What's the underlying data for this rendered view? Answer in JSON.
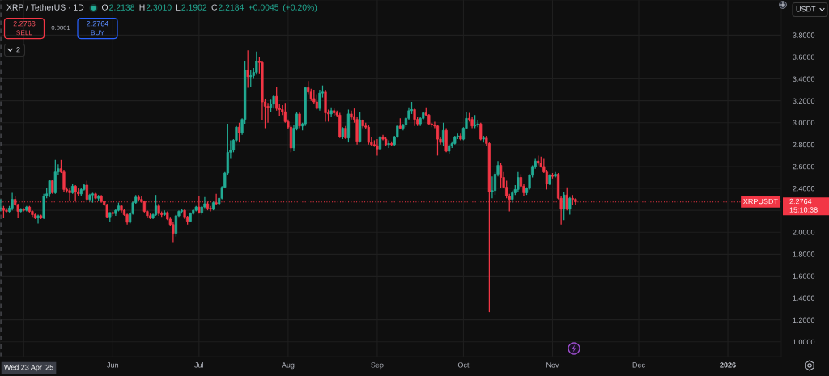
{
  "chart_data": {
    "type": "candlestick",
    "title": "XRP / TetherUS · 1D",
    "subtitle": "O2.2138 H2.3010 L2.1902 C2.2184 +0.0045 (+0.20%)",
    "x": [
      "2025-04-23",
      "2025-04-24",
      "2025-04-25",
      "2025-04-26",
      "2025-04-27",
      "2025-04-28",
      "2025-04-29",
      "2025-04-30",
      "2025-05-01",
      "2025-05-02",
      "2025-05-03",
      "2025-05-04",
      "2025-05-05",
      "2025-05-06",
      "2025-05-07",
      "2025-05-08",
      "2025-05-09",
      "2025-05-10",
      "2025-05-11",
      "2025-05-12",
      "2025-05-13",
      "2025-05-14",
      "2025-05-15",
      "2025-05-16",
      "2025-05-17",
      "2025-05-18",
      "2025-05-19",
      "2025-05-20",
      "2025-05-21",
      "2025-05-22",
      "2025-05-23",
      "2025-05-24",
      "2025-05-25",
      "2025-05-26",
      "2025-05-27",
      "2025-05-28",
      "2025-05-29",
      "2025-05-30",
      "2025-05-31",
      "2025-06-01",
      "2025-06-02",
      "2025-06-03",
      "2025-06-04",
      "2025-06-05",
      "2025-06-06",
      "2025-06-07",
      "2025-06-08",
      "2025-06-09",
      "2025-06-10",
      "2025-06-11",
      "2025-06-12",
      "2025-06-13",
      "2025-06-14",
      "2025-06-15",
      "2025-06-16",
      "2025-06-17",
      "2025-06-18",
      "2025-06-19",
      "2025-06-20",
      "2025-06-21",
      "2025-06-22",
      "2025-06-23",
      "2025-06-24",
      "2025-06-25",
      "2025-06-26",
      "2025-06-27",
      "2025-06-28",
      "2025-06-29",
      "2025-06-30",
      "2025-07-01",
      "2025-07-02",
      "2025-07-03",
      "2025-07-04",
      "2025-07-05",
      "2025-07-06",
      "2025-07-07",
      "2025-07-08",
      "2025-07-09",
      "2025-07-10",
      "2025-07-11",
      "2025-07-12",
      "2025-07-13",
      "2025-07-14",
      "2025-07-15",
      "2025-07-16",
      "2025-07-17",
      "2025-07-18",
      "2025-07-19",
      "2025-07-20",
      "2025-07-21",
      "2025-07-22",
      "2025-07-23",
      "2025-07-24",
      "2025-07-25",
      "2025-07-26",
      "2025-07-27",
      "2025-07-28",
      "2025-07-29",
      "2025-07-30",
      "2025-07-31",
      "2025-08-01",
      "2025-08-02",
      "2025-08-03",
      "2025-08-04",
      "2025-08-05",
      "2025-08-06",
      "2025-08-07",
      "2025-08-08",
      "2025-08-09",
      "2025-08-10",
      "2025-08-11",
      "2025-08-12",
      "2025-08-13",
      "2025-08-14",
      "2025-08-15",
      "2025-08-16",
      "2025-08-17",
      "2025-08-18",
      "2025-08-19",
      "2025-08-20",
      "2025-08-21",
      "2025-08-22",
      "2025-08-23",
      "2025-08-24",
      "2025-08-25",
      "2025-08-26",
      "2025-08-27",
      "2025-08-28",
      "2025-08-29",
      "2025-08-30",
      "2025-08-31",
      "2025-09-01",
      "2025-09-02",
      "2025-09-03",
      "2025-09-04",
      "2025-09-05",
      "2025-09-06",
      "2025-09-07",
      "2025-09-08",
      "2025-09-09",
      "2025-09-10",
      "2025-09-11",
      "2025-09-12",
      "2025-09-13",
      "2025-09-14",
      "2025-09-15",
      "2025-09-16",
      "2025-09-17",
      "2025-09-18",
      "2025-09-19",
      "2025-09-20",
      "2025-09-21",
      "2025-09-22",
      "2025-09-23",
      "2025-09-24",
      "2025-09-25",
      "2025-09-26",
      "2025-09-27",
      "2025-09-28",
      "2025-09-29",
      "2025-09-30",
      "2025-10-01",
      "2025-10-02",
      "2025-10-03",
      "2025-10-04",
      "2025-10-05",
      "2025-10-06",
      "2025-10-07",
      "2025-10-08",
      "2025-10-09",
      "2025-10-10",
      "2025-10-11",
      "2025-10-12",
      "2025-10-13",
      "2025-10-14",
      "2025-10-15",
      "2025-10-16",
      "2025-10-17",
      "2025-10-18",
      "2025-10-19",
      "2025-10-20",
      "2025-10-21",
      "2025-10-22",
      "2025-10-23",
      "2025-10-24",
      "2025-10-25",
      "2025-10-26",
      "2025-10-27",
      "2025-10-28",
      "2025-10-29",
      "2025-10-30",
      "2025-10-31",
      "2025-11-01",
      "2025-11-02",
      "2025-11-03",
      "2025-11-04",
      "2025-11-05",
      "2025-11-06",
      "2025-11-07",
      "2025-11-08",
      "2025-11-09"
    ],
    "ohlc": [
      [
        2.2138,
        2.301,
        2.1902,
        2.2184
      ],
      [
        2.22,
        2.24,
        2.13,
        2.2
      ],
      [
        2.2,
        2.22,
        2.18,
        2.19
      ],
      [
        2.19,
        2.24,
        2.18,
        2.22
      ],
      [
        2.22,
        2.36,
        2.2,
        2.3
      ],
      [
        2.3,
        2.33,
        2.24,
        2.25
      ],
      [
        2.25,
        2.26,
        2.13,
        2.19
      ],
      [
        2.19,
        2.22,
        2.18,
        2.21
      ],
      [
        2.21,
        2.22,
        2.19,
        2.2
      ],
      [
        2.2,
        2.24,
        2.19,
        2.23
      ],
      [
        2.23,
        2.24,
        2.18,
        2.19
      ],
      [
        2.19,
        2.2,
        2.14,
        2.16
      ],
      [
        2.16,
        2.17,
        2.12,
        2.13
      ],
      [
        2.13,
        2.16,
        2.08,
        2.15
      ],
      [
        2.15,
        2.16,
        2.12,
        2.13
      ],
      [
        2.13,
        2.35,
        2.12,
        2.33
      ],
      [
        2.33,
        2.4,
        2.31,
        2.35
      ],
      [
        2.35,
        2.48,
        2.32,
        2.47
      ],
      [
        2.47,
        2.48,
        2.35,
        2.36
      ],
      [
        2.36,
        2.66,
        2.35,
        2.55
      ],
      [
        2.55,
        2.62,
        2.52,
        2.58
      ],
      [
        2.58,
        2.66,
        2.54,
        2.55
      ],
      [
        2.55,
        2.57,
        2.37,
        2.39
      ],
      [
        2.39,
        2.41,
        2.36,
        2.38
      ],
      [
        2.38,
        2.4,
        2.29,
        2.36
      ],
      [
        2.36,
        2.44,
        2.35,
        2.42
      ],
      [
        2.42,
        2.43,
        2.29,
        2.37
      ],
      [
        2.37,
        2.4,
        2.33,
        2.35
      ],
      [
        2.35,
        2.4,
        2.33,
        2.39
      ],
      [
        2.39,
        2.44,
        2.38,
        2.43
      ],
      [
        2.43,
        2.47,
        2.29,
        2.3
      ],
      [
        2.3,
        2.35,
        2.28,
        2.34
      ],
      [
        2.34,
        2.36,
        2.27,
        2.35
      ],
      [
        2.35,
        2.36,
        2.3,
        2.31
      ],
      [
        2.31,
        2.34,
        2.29,
        2.33
      ],
      [
        2.33,
        2.34,
        2.27,
        2.28
      ],
      [
        2.28,
        2.29,
        2.24,
        2.25
      ],
      [
        2.25,
        2.26,
        2.13,
        2.14
      ],
      [
        2.14,
        2.18,
        2.09,
        2.18
      ],
      [
        2.18,
        2.19,
        2.15,
        2.17
      ],
      [
        2.17,
        2.21,
        2.15,
        2.2
      ],
      [
        2.2,
        2.27,
        2.19,
        2.24
      ],
      [
        2.24,
        2.25,
        2.18,
        2.2
      ],
      [
        2.2,
        2.21,
        2.15,
        2.16
      ],
      [
        2.16,
        2.17,
        2.07,
        2.09
      ],
      [
        2.09,
        2.19,
        2.08,
        2.17
      ],
      [
        2.17,
        2.28,
        2.16,
        2.27
      ],
      [
        2.27,
        2.34,
        2.26,
        2.32
      ],
      [
        2.32,
        2.34,
        2.28,
        2.3
      ],
      [
        2.3,
        2.33,
        2.27,
        2.28
      ],
      [
        2.28,
        2.29,
        2.18,
        2.19
      ],
      [
        2.19,
        2.2,
        2.13,
        2.15
      ],
      [
        2.15,
        2.17,
        2.12,
        2.13
      ],
      [
        2.13,
        2.17,
        2.12,
        2.16
      ],
      [
        2.16,
        2.34,
        2.15,
        2.24
      ],
      [
        2.24,
        2.26,
        2.15,
        2.17
      ],
      [
        2.17,
        2.19,
        2.14,
        2.16
      ],
      [
        2.16,
        2.2,
        2.15,
        2.18
      ],
      [
        2.18,
        2.19,
        2.11,
        2.12
      ],
      [
        2.12,
        2.14,
        2.06,
        2.07
      ],
      [
        2.07,
        2.09,
        1.91,
        1.99
      ],
      [
        1.99,
        2.16,
        1.96,
        2.15
      ],
      [
        2.15,
        2.2,
        2.14,
        2.19
      ],
      [
        2.19,
        2.21,
        2.17,
        2.2
      ],
      [
        2.2,
        2.21,
        2.12,
        2.14
      ],
      [
        2.14,
        2.15,
        2.07,
        2.1
      ],
      [
        2.1,
        2.18,
        2.09,
        2.17
      ],
      [
        2.17,
        2.21,
        2.16,
        2.2
      ],
      [
        2.2,
        2.24,
        2.19,
        2.23
      ],
      [
        2.23,
        2.33,
        2.17,
        2.18
      ],
      [
        2.18,
        2.24,
        2.16,
        2.23
      ],
      [
        2.23,
        2.32,
        2.22,
        2.26
      ],
      [
        2.26,
        2.28,
        2.2,
        2.22
      ],
      [
        2.22,
        2.24,
        2.19,
        2.21
      ],
      [
        2.21,
        2.28,
        2.2,
        2.27
      ],
      [
        2.27,
        2.35,
        2.25,
        2.26
      ],
      [
        2.26,
        2.31,
        2.25,
        2.31
      ],
      [
        2.31,
        2.42,
        2.3,
        2.41
      ],
      [
        2.41,
        2.55,
        2.4,
        2.54
      ],
      [
        2.54,
        2.99,
        2.52,
        2.73
      ],
      [
        2.73,
        2.84,
        2.67,
        2.75
      ],
      [
        2.75,
        2.85,
        2.73,
        2.84
      ],
      [
        2.84,
        2.97,
        2.82,
        2.96
      ],
      [
        2.96,
        3.0,
        2.82,
        2.91
      ],
      [
        2.91,
        3.04,
        2.89,
        3.03
      ],
      [
        3.03,
        3.56,
        2.99,
        3.48
      ],
      [
        3.48,
        3.66,
        3.32,
        3.42
      ],
      [
        3.42,
        3.48,
        3.33,
        3.43
      ],
      [
        3.43,
        3.5,
        3.4,
        3.46
      ],
      [
        3.46,
        3.65,
        3.44,
        3.56
      ],
      [
        3.56,
        3.6,
        3.45,
        3.55
      ],
      [
        3.55,
        3.56,
        3.02,
        3.19
      ],
      [
        3.19,
        3.22,
        2.95,
        3.15
      ],
      [
        3.15,
        3.18,
        3.0,
        3.14
      ],
      [
        3.14,
        3.21,
        3.1,
        3.17
      ],
      [
        3.17,
        3.25,
        3.13,
        3.24
      ],
      [
        3.24,
        3.33,
        3.11,
        3.13
      ],
      [
        3.13,
        3.17,
        3.06,
        3.12
      ],
      [
        3.12,
        3.16,
        3.07,
        3.1
      ],
      [
        3.1,
        3.18,
        3.0,
        3.01
      ],
      [
        3.01,
        3.03,
        2.94,
        2.96
      ],
      [
        2.96,
        2.98,
        2.73,
        2.77
      ],
      [
        2.77,
        2.98,
        2.74,
        2.95
      ],
      [
        2.95,
        3.1,
        2.93,
        3.08
      ],
      [
        3.08,
        3.1,
        2.95,
        2.97
      ],
      [
        2.97,
        3.0,
        2.93,
        2.99
      ],
      [
        2.99,
        3.33,
        2.97,
        3.32
      ],
      [
        3.32,
        3.38,
        3.26,
        3.28
      ],
      [
        3.28,
        3.31,
        3.2,
        3.22
      ],
      [
        3.22,
        3.3,
        3.17,
        3.19
      ],
      [
        3.19,
        3.26,
        3.12,
        3.13
      ],
      [
        3.13,
        3.3,
        3.11,
        3.27
      ],
      [
        3.27,
        3.34,
        3.23,
        3.28
      ],
      [
        3.28,
        3.3,
        3.01,
        3.09
      ],
      [
        3.09,
        3.12,
        3.01,
        3.08
      ],
      [
        3.08,
        3.14,
        3.05,
        3.11
      ],
      [
        3.11,
        3.13,
        3.06,
        3.09
      ],
      [
        3.09,
        3.11,
        3.05,
        3.07
      ],
      [
        3.07,
        3.09,
        2.86,
        2.87
      ],
      [
        2.87,
        2.96,
        2.85,
        2.95
      ],
      [
        2.95,
        2.97,
        2.85,
        2.86
      ],
      [
        2.86,
        3.12,
        2.82,
        3.08
      ],
      [
        3.08,
        3.11,
        3.03,
        3.05
      ],
      [
        3.05,
        3.13,
        3.0,
        3.03
      ],
      [
        3.03,
        3.05,
        2.8,
        2.83
      ],
      [
        2.83,
        3.1,
        2.82,
        3.02
      ],
      [
        3.02,
        3.03,
        2.95,
        2.97
      ],
      [
        2.97,
        3.0,
        2.94,
        2.96
      ],
      [
        2.96,
        2.98,
        2.8,
        2.82
      ],
      [
        2.82,
        2.87,
        2.79,
        2.8
      ],
      [
        2.8,
        2.84,
        2.78,
        2.79
      ],
      [
        2.79,
        2.85,
        2.7,
        2.76
      ],
      [
        2.76,
        2.88,
        2.75,
        2.87
      ],
      [
        2.87,
        2.89,
        2.84,
        2.85
      ],
      [
        2.85,
        2.87,
        2.79,
        2.8
      ],
      [
        2.8,
        2.84,
        2.77,
        2.81
      ],
      [
        2.81,
        2.83,
        2.79,
        2.8
      ],
      [
        2.8,
        2.88,
        2.79,
        2.87
      ],
      [
        2.87,
        2.97,
        2.86,
        2.97
      ],
      [
        2.97,
        3.04,
        2.94,
        2.95
      ],
      [
        2.95,
        2.99,
        2.93,
        2.98
      ],
      [
        2.98,
        3.05,
        2.96,
        3.04
      ],
      [
        3.04,
        3.14,
        3.02,
        3.11
      ],
      [
        3.11,
        3.19,
        3.08,
        3.12
      ],
      [
        3.12,
        3.13,
        2.97,
        3.03
      ],
      [
        3.03,
        3.05,
        2.97,
        2.99
      ],
      [
        2.99,
        3.05,
        2.97,
        3.04
      ],
      [
        3.04,
        3.1,
        3.02,
        3.09
      ],
      [
        3.09,
        3.14,
        3.06,
        3.07
      ],
      [
        3.07,
        3.08,
        2.98,
        2.99
      ],
      [
        2.99,
        3.0,
        2.96,
        2.98
      ],
      [
        2.98,
        3.01,
        2.95,
        2.97
      ],
      [
        2.97,
        2.98,
        2.7,
        2.85
      ],
      [
        2.85,
        2.87,
        2.8,
        2.82
      ],
      [
        2.82,
        3.0,
        2.79,
        2.93
      ],
      [
        2.93,
        2.95,
        2.73,
        2.74
      ],
      [
        2.74,
        2.8,
        2.71,
        2.79
      ],
      [
        2.79,
        2.83,
        2.77,
        2.81
      ],
      [
        2.81,
        2.88,
        2.8,
        2.87
      ],
      [
        2.87,
        2.9,
        2.85,
        2.88
      ],
      [
        2.88,
        2.9,
        2.84,
        2.85
      ],
      [
        2.85,
        2.96,
        2.84,
        2.95
      ],
      [
        2.95,
        3.1,
        2.94,
        3.04
      ],
      [
        3.04,
        3.09,
        3.01,
        3.03
      ],
      [
        3.03,
        3.05,
        2.95,
        2.97
      ],
      [
        2.97,
        3.07,
        2.95,
        2.98
      ],
      [
        2.98,
        3.02,
        2.96,
        2.99
      ],
      [
        2.99,
        3.0,
        2.84,
        2.85
      ],
      [
        2.85,
        2.88,
        2.82,
        2.86
      ],
      [
        2.86,
        2.88,
        2.79,
        2.81
      ],
      [
        2.81,
        2.82,
        1.27,
        2.37
      ],
      [
        2.37,
        2.51,
        2.31,
        2.38
      ],
      [
        2.38,
        2.55,
        2.34,
        2.53
      ],
      [
        2.53,
        2.65,
        2.51,
        2.61
      ],
      [
        2.61,
        2.63,
        2.4,
        2.5
      ],
      [
        2.5,
        2.55,
        2.4,
        2.41
      ],
      [
        2.41,
        2.47,
        2.31,
        2.33
      ],
      [
        2.33,
        2.35,
        2.19,
        2.3
      ],
      [
        2.3,
        2.38,
        2.27,
        2.36
      ],
      [
        2.36,
        2.43,
        2.34,
        2.39
      ],
      [
        2.39,
        2.55,
        2.37,
        2.5
      ],
      [
        2.5,
        2.53,
        2.41,
        2.42
      ],
      [
        2.42,
        2.44,
        2.33,
        2.36
      ],
      [
        2.36,
        2.41,
        2.34,
        2.4
      ],
      [
        2.4,
        2.53,
        2.39,
        2.52
      ],
      [
        2.52,
        2.61,
        2.5,
        2.6
      ],
      [
        2.6,
        2.67,
        2.58,
        2.65
      ],
      [
        2.65,
        2.7,
        2.61,
        2.63
      ],
      [
        2.63,
        2.69,
        2.59,
        2.6
      ],
      [
        2.6,
        2.67,
        2.54,
        2.55
      ],
      [
        2.55,
        2.57,
        2.39,
        2.44
      ],
      [
        2.44,
        2.53,
        2.43,
        2.52
      ],
      [
        2.52,
        2.54,
        2.49,
        2.51
      ],
      [
        2.51,
        2.55,
        2.5,
        2.53
      ],
      [
        2.53,
        2.54,
        2.3,
        2.31
      ],
      [
        2.31,
        2.33,
        2.07,
        2.21
      ],
      [
        2.21,
        2.37,
        2.11,
        2.34
      ],
      [
        2.34,
        2.41,
        2.2,
        2.21
      ],
      [
        2.21,
        2.32,
        2.16,
        2.31
      ],
      [
        2.31,
        2.34,
        2.25,
        2.3
      ],
      [
        2.3,
        2.31,
        2.25,
        2.2764
      ]
    ],
    "colors": [
      "#22ab94",
      "#f23645",
      "#f23645",
      "#22ab94",
      "#22ab94",
      "#f23645",
      "#f23645",
      "#22ab94",
      "#f23645",
      "#22ab94",
      "#f23645",
      "#f23645",
      "#f23645",
      "#22ab94",
      "#f23645",
      "#22ab94",
      "#22ab94",
      "#22ab94",
      "#f23645",
      "#22ab94",
      "#22ab94",
      "#f23645",
      "#f23645",
      "#f23645",
      "#f23645",
      "#22ab94",
      "#f23645",
      "#f23645",
      "#22ab94",
      "#22ab94",
      "#f23645",
      "#22ab94",
      "#22ab94",
      "#f23645",
      "#22ab94",
      "#f23645",
      "#f23645",
      "#f23645",
      "#22ab94",
      "#f23645",
      "#22ab94",
      "#22ab94",
      "#f23645",
      "#f23645",
      "#f23645",
      "#22ab94",
      "#22ab94",
      "#22ab94",
      "#f23645",
      "#f23645",
      "#f23645",
      "#f23645",
      "#f23645",
      "#22ab94",
      "#22ab94",
      "#f23645",
      "#f23645",
      "#22ab94",
      "#f23645",
      "#f23645",
      "#f23645",
      "#22ab94",
      "#22ab94",
      "#22ab94",
      "#f23645",
      "#f23645",
      "#22ab94",
      "#22ab94",
      "#22ab94",
      "#f23645",
      "#22ab94",
      "#22ab94",
      "#f23645",
      "#f23645",
      "#22ab94",
      "#f23645",
      "#22ab94",
      "#22ab94",
      "#22ab94",
      "#22ab94",
      "#22ab94",
      "#22ab94",
      "#22ab94",
      "#f23645",
      "#22ab94",
      "#22ab94",
      "#f23645",
      "#22ab94",
      "#22ab94",
      "#22ab94",
      "#f23645",
      "#f23645",
      "#f23645",
      "#f23645",
      "#22ab94",
      "#22ab94",
      "#f23645",
      "#f23645",
      "#f23645",
      "#f23645",
      "#f23645",
      "#f23645",
      "#22ab94",
      "#22ab94",
      "#f23645",
      "#22ab94",
      "#22ab94",
      "#f23645",
      "#f23645",
      "#f23645",
      "#f23645",
      "#22ab94",
      "#22ab94",
      "#f23645",
      "#f23645",
      "#22ab94",
      "#f23645",
      "#f23645",
      "#f23645",
      "#22ab94",
      "#f23645",
      "#22ab94",
      "#f23645",
      "#f23645",
      "#f23645",
      "#22ab94",
      "#f23645",
      "#f23645",
      "#f23645",
      "#f23645",
      "#f23645",
      "#f23645",
      "#22ab94",
      "#f23645",
      "#f23645",
      "#22ab94",
      "#f23645",
      "#22ab94",
      "#22ab94",
      "#f23645",
      "#22ab94",
      "#22ab94",
      "#22ab94",
      "#22ab94",
      "#f23645",
      "#f23645",
      "#22ab94",
      "#22ab94",
      "#f23645",
      "#f23645",
      "#f23645",
      "#f23645",
      "#f23645",
      "#f23645",
      "#22ab94",
      "#f23645",
      "#22ab94",
      "#22ab94",
      "#22ab94",
      "#22ab94",
      "#f23645",
      "#22ab94",
      "#22ab94",
      "#f23645",
      "#f23645",
      "#22ab94",
      "#22ab94",
      "#f23645",
      "#22ab94",
      "#f23645",
      "#f23645",
      "#22ab94",
      "#22ab94",
      "#22ab94",
      "#f23645",
      "#f23645",
      "#f23645",
      "#f23645",
      "#22ab94",
      "#22ab94",
      "#22ab94",
      "#f23645",
      "#f23645",
      "#22ab94",
      "#22ab94",
      "#22ab94",
      "#22ab94",
      "#f23645",
      "#f23645",
      "#f23645",
      "#f23645",
      "#22ab94",
      "#f23645",
      "#22ab94",
      "#f23645",
      "#f23645",
      "#22ab94",
      "#f23645",
      "#22ab94",
      "#f23645",
      "#f23645"
    ],
    "xlim": [
      "2025-04-22T18:00",
      "2026-01-19T14:00"
    ],
    "xticks": [
      {
        "value": "2025-05-01",
        "label": null
      },
      {
        "value": "2025-06-01",
        "label": "Jun"
      },
      {
        "value": "2025-07-01",
        "label": "Jul"
      },
      {
        "value": "2025-08-01",
        "label": "Aug"
      },
      {
        "value": "2025-09-01",
        "label": "Sep"
      },
      {
        "value": "2025-10-01",
        "label": "Oct"
      },
      {
        "value": "2025-11-01",
        "label": "Nov"
      },
      {
        "value": "2025-12-01",
        "label": "Dec"
      },
      {
        "value": "2026-01-01",
        "label": "2026"
      }
    ],
    "ylim": [
      0.865,
      4.12
    ],
    "yticks": [
      {
        "value": 1.0,
        "label": "1.0000"
      },
      {
        "value": 1.2,
        "label": "1.2000"
      },
      {
        "value": 1.4,
        "label": "1.4000"
      },
      {
        "value": 1.6,
        "label": "1.6000"
      },
      {
        "value": 1.8,
        "label": "1.8000"
      },
      {
        "value": 2.0,
        "label": "2.0000"
      },
      {
        "value": 2.2,
        "label": null
      },
      {
        "value": 2.4,
        "label": "2.4000"
      },
      {
        "value": 2.6,
        "label": "2.6000"
      },
      {
        "value": 2.8,
        "label": "2.8000"
      },
      {
        "value": 3.0,
        "label": "3.0000"
      },
      {
        "value": 3.2,
        "label": "3.2000"
      },
      {
        "value": 3.4,
        "label": "3.4000"
      },
      {
        "value": 3.6,
        "label": "3.6000"
      },
      {
        "value": 3.8,
        "label": "3.8000"
      }
    ],
    "grid": true,
    "ref_lines": [
      {
        "axis": "y",
        "value": 2.2764,
        "label": "XRPUSDT",
        "color": "#f23645",
        "line_style": "dotted"
      },
      {
        "axis": "x",
        "value": "2025-04-23",
        "label": "Wed 23 Apr '25",
        "color": "#787b86",
        "line_style": "dashed"
      }
    ],
    "annotations": [
      "2.2763",
      "SELL",
      "0.0001",
      "2.2764",
      "BUY",
      "2",
      "USDT",
      "15:10:38"
    ]
  }
}
